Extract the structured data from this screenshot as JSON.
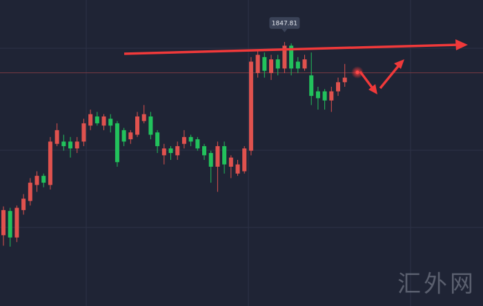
{
  "chart_data": {
    "type": "candlestick",
    "open": [
      1805.5,
      1810.8,
      1805.0,
      1811.0,
      1813.0,
      1816.5,
      1818.5,
      1816.5,
      1825.5,
      1826.0,
      1826.0,
      1824.5,
      1826.0,
      1829.5,
      1831.5,
      1829.5,
      1831.0,
      1830.0,
      1828.5,
      1826.5,
      1827.5,
      1830.5,
      1831.5,
      1828.0,
      1823.0,
      1824.5,
      1823.0,
      1825.5,
      1827.0,
      1826.5,
      1825.0,
      1823.5,
      1820.5,
      1825.0,
      1820.5,
      1819.0,
      1819.5,
      1824.0,
      1841.0,
      1844.5,
      1841.0,
      1844.0,
      1842.0,
      1847.0,
      1843.5,
      1842.0,
      1840.5,
      1837.0,
      1837.0,
      1835.0,
      1837.0,
      1839.0
    ],
    "high": [
      1811.8,
      1811.5,
      1812.0,
      1814.5,
      1818.0,
      1819.5,
      1819.0,
      1827.0,
      1830.0,
      1827.5,
      1827.0,
      1827.0,
      1831.0,
      1833.0,
      1832.5,
      1832.0,
      1832.0,
      1830.5,
      1829.0,
      1828.5,
      1832.5,
      1834.0,
      1832.5,
      1828.5,
      1825.5,
      1825.0,
      1826.0,
      1828.5,
      1827.5,
      1827.0,
      1825.5,
      1824.0,
      1826.0,
      1826.0,
      1823.0,
      1822.0,
      1825.0,
      1844.5,
      1846.0,
      1845.5,
      1845.0,
      1845.0,
      1847.81,
      1847.5,
      1844.5,
      1845.0,
      1845.5,
      1838.0,
      1837.5,
      1838.0,
      1840.0,
      1843.0
    ],
    "low": [
      1803.2,
      1803.0,
      1804.0,
      1810.0,
      1812.0,
      1815.0,
      1816.0,
      1815.5,
      1825.0,
      1824.0,
      1822.5,
      1823.5,
      1825.0,
      1828.5,
      1829.5,
      1828.5,
      1828.0,
      1820.5,
      1825.0,
      1825.5,
      1827.0,
      1830.0,
      1826.5,
      1823.5,
      1821.0,
      1822.0,
      1822.0,
      1824.5,
      1825.0,
      1824.0,
      1822.0,
      1817.0,
      1815.0,
      1819.0,
      1818.0,
      1818.5,
      1819.0,
      1823.0,
      1840.0,
      1840.0,
      1839.5,
      1840.5,
      1841.0,
      1840.5,
      1841.0,
      1841.5,
      1834.0,
      1833.0,
      1833.0,
      1832.5,
      1836.0,
      1838.0
    ],
    "close": [
      1811.0,
      1805.0,
      1811.5,
      1813.5,
      1817.0,
      1818.5,
      1817.0,
      1826.0,
      1828.5,
      1825.0,
      1824.5,
      1826.0,
      1830.0,
      1832.0,
      1830.0,
      1831.5,
      1829.5,
      1821.5,
      1826.0,
      1828.0,
      1831.5,
      1832.0,
      1827.5,
      1825.0,
      1824.5,
      1823.5,
      1825.0,
      1827.0,
      1826.0,
      1824.5,
      1823.0,
      1820.5,
      1825.0,
      1821.0,
      1822.5,
      1821.0,
      1824.5,
      1843.5,
      1845.0,
      1841.5,
      1844.0,
      1842.0,
      1847.0,
      1842.0,
      1842.0,
      1844.0,
      1836.0,
      1835.5,
      1835.0,
      1837.0,
      1839.0,
      1840.0
    ],
    "up_color": "#e0524e",
    "down_color": "#22c25c",
    "ylim": [
      1790,
      1857
    ],
    "watermark": "汇外网"
  }
}
